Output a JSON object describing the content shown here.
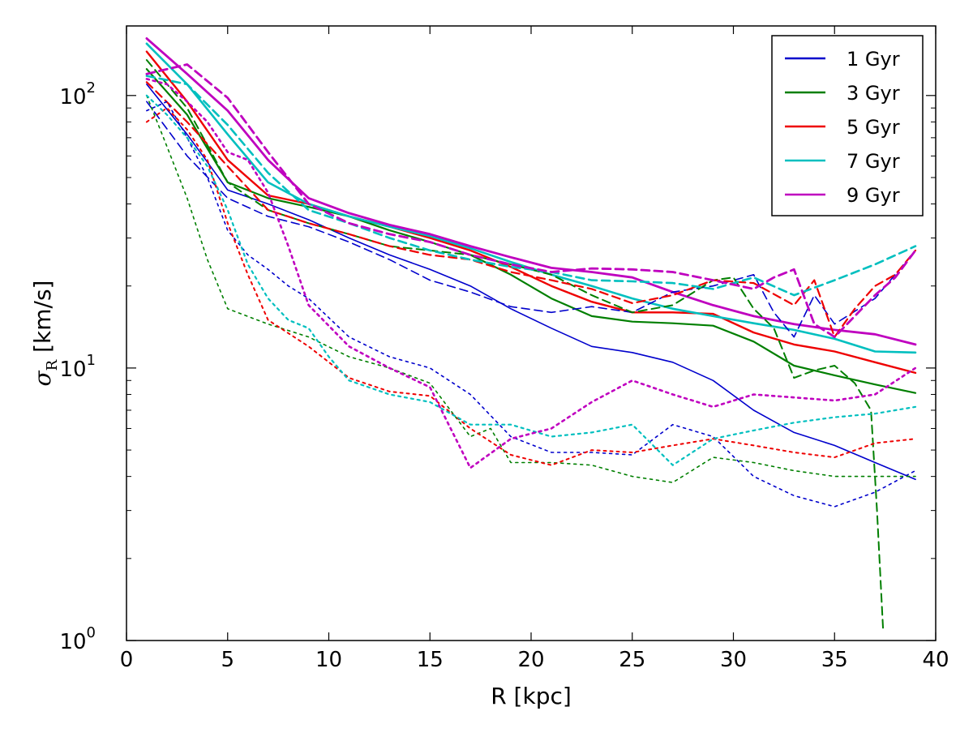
{
  "chart_data": {
    "type": "line",
    "title": "",
    "xlabel": "R [kpc]",
    "ylabel_symbol": "σ",
    "ylabel_subscript": "R",
    "ylabel_units": " [km/s]",
    "xlim": [
      0,
      40
    ],
    "ylim": [
      1,
      180
    ],
    "yscale": "log",
    "grid": false,
    "legend_position": "top-right",
    "x_ticks": [
      0,
      5,
      10,
      15,
      20,
      25,
      30,
      35,
      40
    ],
    "x_tick_labels": [
      "0",
      "5",
      "10",
      "15",
      "20",
      "25",
      "30",
      "35",
      "40"
    ],
    "y_ticks": [
      {
        "value": 1,
        "base": "10",
        "exp": "0"
      },
      {
        "value": 10,
        "base": "10",
        "exp": "1"
      },
      {
        "value": 100,
        "base": "10",
        "exp": "2"
      }
    ],
    "legend": [
      {
        "label": "1 Gyr",
        "color": "#0000cc"
      },
      {
        "label": "3 Gyr",
        "color": "#007f00"
      },
      {
        "label": "5 Gyr",
        "color": "#ee0000"
      },
      {
        "label": "7 Gyr",
        "color": "#00bfbf"
      },
      {
        "label": "9 Gyr",
        "color": "#bf00bf"
      }
    ],
    "series": [
      {
        "age": "1 Gyr",
        "style": "solid",
        "color": "#0000cc",
        "width": 1.6,
        "x": [
          1,
          3,
          5,
          7,
          9,
          11,
          13,
          15,
          17,
          19,
          21,
          23,
          25,
          27,
          29,
          31,
          33,
          35,
          37,
          39
        ],
        "y": [
          110,
          72,
          45,
          40,
          35,
          30,
          26,
          23,
          20,
          16.5,
          14,
          12,
          11.4,
          10.5,
          9,
          7,
          5.8,
          5.2,
          4.5,
          3.9
        ]
      },
      {
        "age": "3 Gyr",
        "style": "solid",
        "color": "#007f00",
        "width": 2.2,
        "x": [
          1,
          3,
          5,
          7,
          9,
          11,
          13,
          15,
          17,
          19,
          21,
          23,
          25,
          27,
          29,
          31,
          33,
          35,
          37,
          39
        ],
        "y": [
          125,
          85,
          48,
          42,
          39,
          36,
          32,
          29,
          26,
          22,
          18,
          15.5,
          14.8,
          14.6,
          14.3,
          12.5,
          10.2,
          9.4,
          8.7,
          8.1
        ]
      },
      {
        "age": "5 Gyr",
        "style": "solid",
        "color": "#ee0000",
        "width": 2.4,
        "x": [
          1,
          3,
          5,
          7,
          9,
          11,
          13,
          15,
          17,
          19,
          21,
          23,
          25,
          27,
          29,
          31,
          33,
          35,
          37,
          39
        ],
        "y": [
          145,
          95,
          58,
          43,
          40,
          36,
          33,
          30,
          27,
          23.5,
          20,
          17.5,
          16,
          16,
          15.8,
          13.5,
          12.2,
          11.5,
          10.5,
          9.6
        ]
      },
      {
        "age": "7 Gyr",
        "style": "solid",
        "color": "#00bfbf",
        "width": 2.6,
        "x": [
          1,
          3,
          5,
          7,
          9,
          11,
          13,
          15,
          17,
          19,
          21,
          23,
          25,
          27,
          29,
          31,
          33,
          35,
          37,
          39
        ],
        "y": [
          155,
          110,
          72,
          48,
          40,
          36,
          33,
          30.5,
          27.5,
          24.5,
          22,
          20,
          18,
          16.5,
          15.5,
          14.6,
          13.8,
          12.8,
          11.5,
          11.4
        ]
      },
      {
        "age": "9 Gyr",
        "style": "solid",
        "color": "#bf00bf",
        "width": 2.8,
        "x": [
          1,
          3,
          5,
          7,
          9,
          11,
          13,
          15,
          17,
          19,
          21,
          23,
          25,
          27,
          29,
          31,
          33,
          35,
          37,
          39
        ],
        "y": [
          162,
          120,
          88,
          58,
          42,
          37,
          33.5,
          31,
          28,
          25.5,
          23.3,
          22.5,
          21.5,
          19,
          17,
          15.5,
          14.5,
          13.8,
          13.3,
          12.2
        ]
      },
      {
        "age": "1 Gyr",
        "style": "dashed",
        "color": "#0000cc",
        "width": 1.6,
        "x": [
          1,
          3,
          5,
          7,
          9,
          11,
          13,
          15,
          17,
          19,
          21,
          23,
          25,
          27,
          29,
          31,
          32,
          33,
          34,
          35,
          37,
          39
        ],
        "y": [
          95,
          60,
          42,
          36,
          33,
          29,
          25,
          21,
          19,
          16.8,
          16,
          16.8,
          16,
          19,
          20,
          22,
          16,
          13,
          18.5,
          14.5,
          18,
          27
        ]
      },
      {
        "age": "3 Gyr",
        "style": "dashed",
        "color": "#007f00",
        "width": 2.0,
        "x": [
          1,
          3,
          5,
          7,
          9,
          11,
          13,
          15,
          17,
          19,
          21,
          23,
          25,
          27,
          29,
          30,
          31,
          32,
          33,
          34,
          35,
          36,
          36.8,
          37.1,
          37.4
        ],
        "y": [
          135,
          90,
          48,
          38,
          34,
          31,
          28,
          27,
          26,
          24,
          22,
          18.5,
          16,
          17,
          21,
          21.5,
          16.5,
          14,
          9.2,
          9.8,
          10.2,
          8.8,
          7,
          3,
          1.1
        ]
      },
      {
        "age": "5 Gyr",
        "style": "dashed",
        "color": "#ee0000",
        "width": 2.2,
        "x": [
          1,
          3,
          5,
          7,
          9,
          11,
          13,
          15,
          17,
          19,
          21,
          23,
          25,
          27,
          29,
          31,
          33,
          34,
          35,
          36,
          37,
          38,
          39
        ],
        "y": [
          112,
          80,
          55,
          38,
          34,
          31,
          28,
          26,
          25,
          22.5,
          21,
          19.5,
          17.3,
          18.5,
          21,
          20.5,
          17,
          21,
          13,
          16.5,
          20,
          22,
          27
        ]
      },
      {
        "age": "7 Gyr",
        "style": "dashed",
        "color": "#00bfbf",
        "width": 2.6,
        "x": [
          1,
          3,
          5,
          7,
          9,
          11,
          13,
          15,
          17,
          19,
          21,
          23,
          25,
          27,
          29,
          31,
          33,
          35,
          37,
          39
        ],
        "y": [
          118,
          110,
          78,
          52,
          38,
          34,
          30,
          27,
          25,
          23.5,
          22.5,
          21,
          20.8,
          20.5,
          19.5,
          21.5,
          18.5,
          21,
          24,
          28
        ]
      },
      {
        "age": "9 Gyr",
        "style": "dashed",
        "color": "#bf00bf",
        "width": 2.8,
        "x": [
          1,
          3,
          5,
          7,
          9,
          11,
          13,
          15,
          17,
          19,
          21,
          23,
          25,
          27,
          29,
          31,
          32,
          33,
          34,
          35,
          36,
          37,
          38,
          39
        ],
        "y": [
          120,
          130,
          98,
          62,
          40,
          34,
          31,
          29,
          26,
          24,
          22.5,
          23.2,
          23,
          22.5,
          21,
          19.5,
          21.5,
          23,
          14.5,
          13,
          15.5,
          18.5,
          21.5,
          27
        ]
      },
      {
        "age": "1 Gyr",
        "style": "dotted",
        "color": "#0000cc",
        "width": 1.6,
        "x": [
          1,
          2,
          3,
          4,
          5,
          6,
          7,
          8,
          9,
          11,
          13,
          15,
          17,
          19,
          21,
          23,
          25,
          27,
          29,
          31,
          33,
          35,
          37,
          39
        ],
        "y": [
          88,
          95,
          70,
          50,
          32,
          26,
          23,
          20,
          18,
          13,
          11,
          10,
          8,
          5.6,
          4.9,
          4.9,
          4.8,
          6.2,
          5.6,
          4,
          3.4,
          3.1,
          3.5,
          4.2
        ]
      },
      {
        "age": "3 Gyr",
        "style": "dotted",
        "color": "#007f00",
        "width": 1.6,
        "x": [
          1,
          2,
          3,
          4,
          5,
          7,
          9,
          11,
          13,
          15,
          17,
          18,
          19,
          21,
          23,
          25,
          27,
          29,
          31,
          33,
          35,
          37,
          39
        ],
        "y": [
          100,
          65,
          42,
          25,
          16.5,
          14.5,
          13,
          11,
          10,
          8.8,
          5.6,
          6,
          4.5,
          4.5,
          4.4,
          4,
          3.8,
          4.7,
          4.5,
          4.2,
          4,
          4,
          4
        ]
      },
      {
        "age": "5 Gyr",
        "style": "dotted",
        "color": "#ee0000",
        "width": 2.0,
        "x": [
          1,
          2,
          3,
          4,
          5,
          6,
          7,
          9,
          11,
          13,
          15,
          17,
          19,
          21,
          23,
          25,
          27,
          29,
          31,
          33,
          35,
          37,
          39
        ],
        "y": [
          80,
          90,
          75,
          58,
          34,
          22,
          15,
          12,
          9.2,
          8.2,
          7.9,
          6,
          4.8,
          4.4,
          5,
          4.9,
          5.2,
          5.5,
          5.2,
          4.9,
          4.7,
          5.3,
          5.5
        ]
      },
      {
        "age": "7 Gyr",
        "style": "dotted",
        "color": "#00bfbf",
        "width": 2.2,
        "x": [
          1,
          2,
          3,
          4,
          5,
          6,
          7,
          8,
          9,
          10,
          11,
          13,
          15,
          17,
          19,
          21,
          23,
          25,
          27,
          29,
          31,
          33,
          35,
          37,
          39
        ],
        "y": [
          100,
          85,
          70,
          55,
          38,
          24,
          18,
          15,
          14,
          11,
          9,
          8,
          7.5,
          6.2,
          6.2,
          5.6,
          5.8,
          6.2,
          4.4,
          5.5,
          5.9,
          6.3,
          6.6,
          6.8,
          7.2
        ]
      },
      {
        "age": "9 Gyr",
        "style": "dotted",
        "color": "#bf00bf",
        "width": 2.6,
        "x": [
          1,
          2,
          3,
          4,
          5,
          6,
          7,
          8,
          9,
          11,
          13,
          15,
          17,
          19,
          21,
          23,
          25,
          27,
          29,
          31,
          33,
          35,
          37,
          39
        ],
        "y": [
          115,
          110,
          95,
          80,
          62,
          58,
          44,
          28,
          17,
          12,
          10,
          8.5,
          4.3,
          5.5,
          6,
          7.5,
          9,
          8,
          7.2,
          8,
          7.8,
          7.6,
          8,
          10
        ]
      }
    ]
  }
}
